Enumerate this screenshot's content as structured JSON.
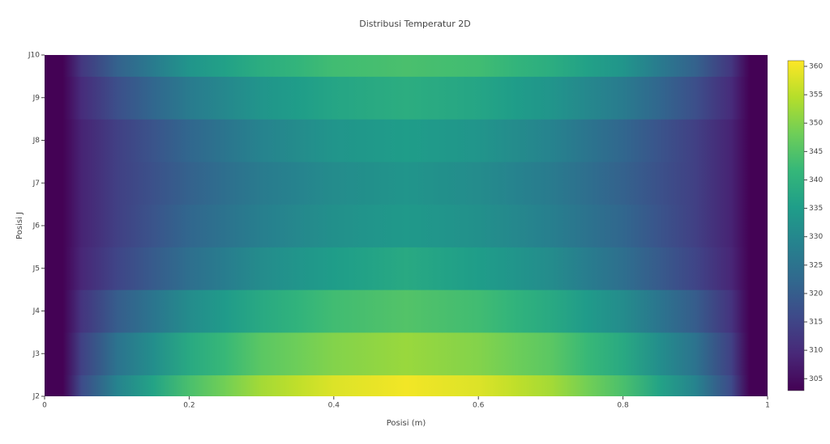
{
  "chart_data": {
    "type": "heatmap",
    "title": "Distribusi Temperatur 2D",
    "x_label": "Posisi (m)",
    "y_label": "Posisi J",
    "x": [
      0,
      0.1,
      0.2,
      0.3,
      0.4,
      0.5,
      0.6,
      0.7,
      0.8,
      0.9,
      1
    ],
    "categories": [
      "J2",
      "J3",
      "J4",
      "J5",
      "J6",
      "J7",
      "J8",
      "J9",
      "J10"
    ],
    "z": [
      [
        303,
        329,
        344,
        353,
        358,
        360,
        358,
        353,
        344,
        329,
        303
      ],
      [
        303,
        325,
        338,
        346,
        350,
        352,
        350,
        346,
        338,
        325,
        303
      ],
      [
        303,
        320,
        331,
        338,
        343,
        345,
        343,
        338,
        331,
        320,
        303
      ],
      [
        303,
        315,
        324,
        331,
        335,
        338,
        335,
        331,
        324,
        315,
        303
      ],
      [
        303,
        314,
        322,
        328,
        332,
        334,
        332,
        328,
        322,
        314,
        303
      ],
      [
        303,
        314,
        321,
        327,
        331,
        333,
        331,
        327,
        321,
        314,
        303
      ],
      [
        303,
        314,
        322,
        329,
        333,
        335,
        333,
        329,
        322,
        314,
        303
      ],
      [
        303,
        317,
        327,
        333,
        337,
        339,
        337,
        333,
        327,
        317,
        303
      ],
      [
        303,
        321,
        333,
        339,
        343,
        344,
        343,
        339,
        333,
        321,
        303
      ]
    ],
    "xlim": [
      0,
      1
    ],
    "xticks": [
      0,
      0.2,
      0.4,
      0.6,
      0.8,
      1
    ],
    "zlim": [
      302.9,
      361
    ],
    "zticks": [
      305,
      310,
      315,
      320,
      325,
      330,
      335,
      340,
      345,
      350,
      355,
      360
    ],
    "colorscale": "Viridis"
  }
}
